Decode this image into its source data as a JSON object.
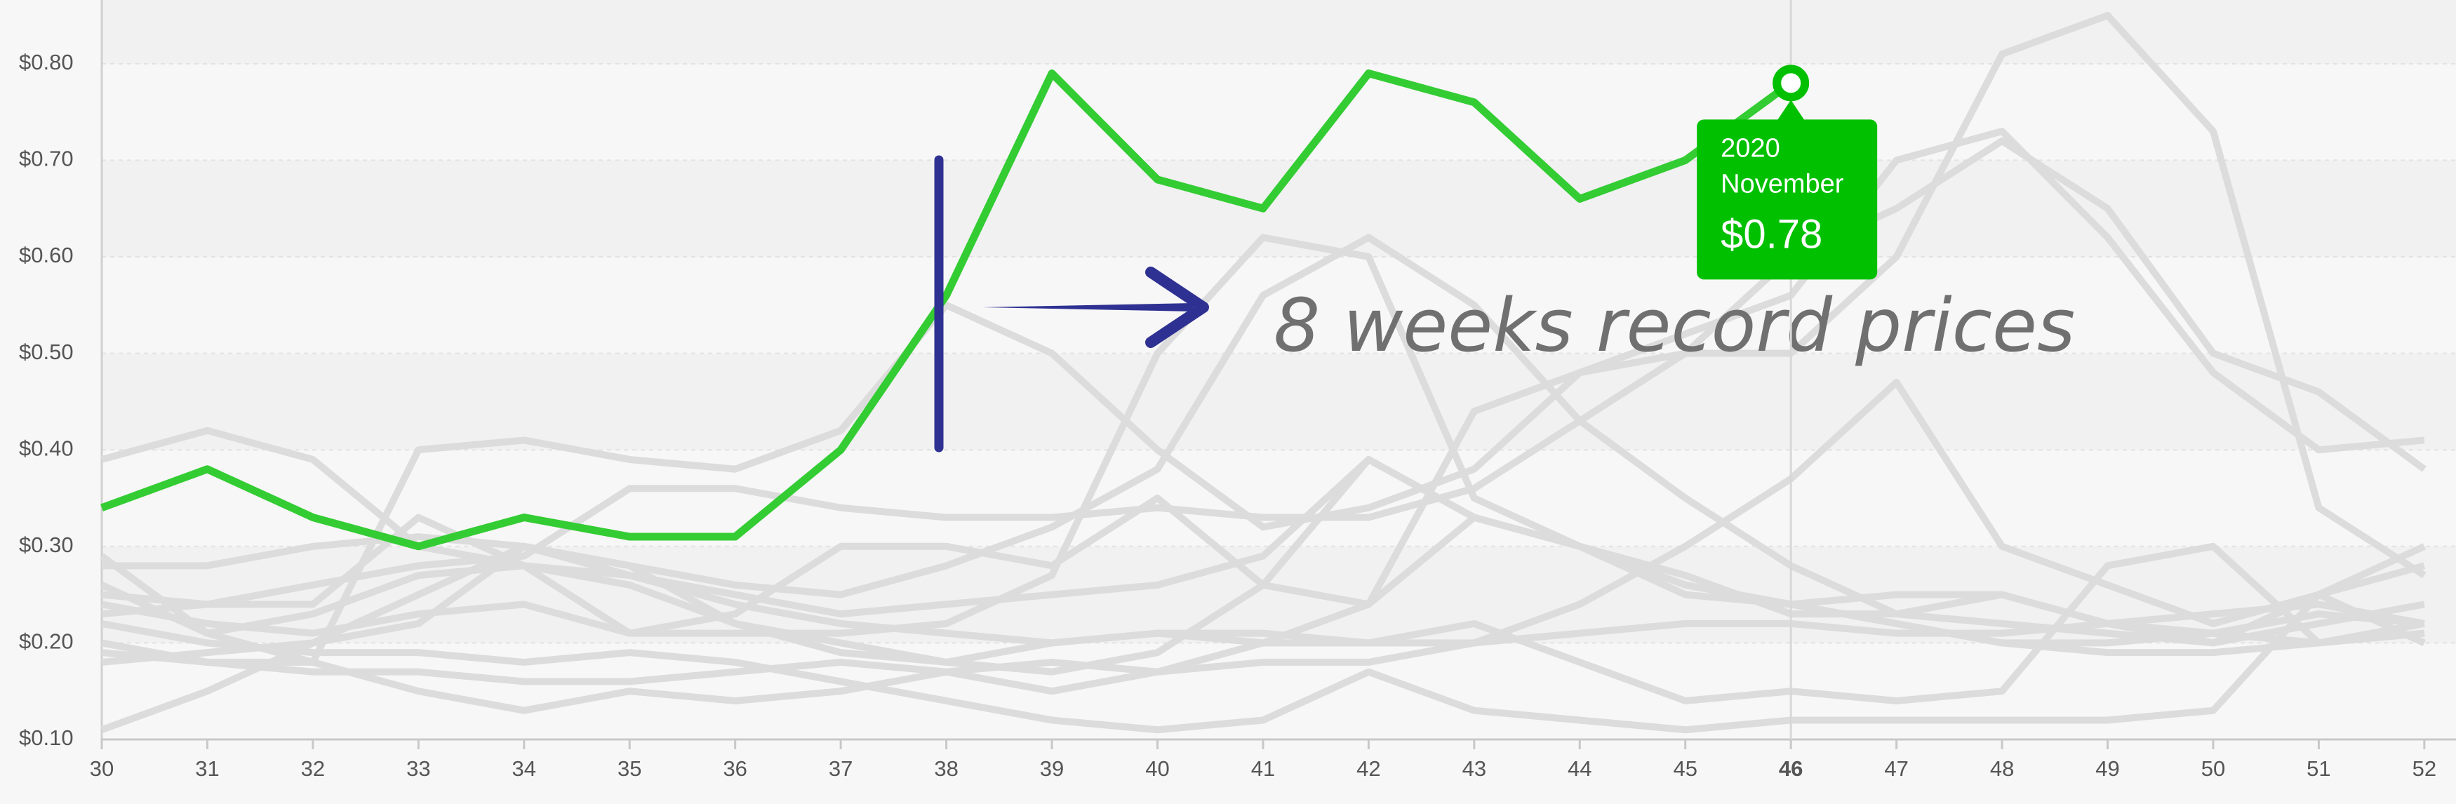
{
  "chart_data": {
    "type": "line",
    "x": [
      30,
      31,
      32,
      33,
      34,
      35,
      36,
      37,
      38,
      39,
      40,
      41,
      42,
      43,
      44,
      45,
      46,
      47,
      48,
      49,
      50,
      51,
      52
    ],
    "xlim": [
      30,
      52.3
    ],
    "ylim": [
      0.1,
      0.866
    ],
    "yticks": [
      {
        "value": 0.1,
        "label": "$0.10"
      },
      {
        "value": 0.2,
        "label": "$0.20"
      },
      {
        "value": 0.3,
        "label": "$0.30"
      },
      {
        "value": 0.4,
        "label": "$0.40"
      },
      {
        "value": 0.5,
        "label": "$0.50"
      },
      {
        "value": 0.6,
        "label": "$0.60"
      },
      {
        "value": 0.7,
        "label": "$0.70"
      },
      {
        "value": 0.8,
        "label": "$0.80"
      }
    ],
    "grid": true,
    "annotation": "8 weeks record prices",
    "tooltip": {
      "x": 46,
      "year": "2020",
      "month": "November",
      "value_label": "$0.78",
      "color": "#00c000"
    },
    "series": [
      {
        "color": "#dcdcdc",
        "values": [
          0.39,
          0.42,
          0.39,
          0.3,
          0.28,
          0.27,
          0.24,
          0.22,
          0.21,
          0.2,
          0.21,
          0.2,
          0.2,
          0.2,
          0.21,
          0.22,
          0.22,
          0.21,
          0.21,
          0.22,
          0.21,
          0.2,
          0.21
        ]
      },
      {
        "color": "#dcdcdc",
        "values": [
          0.11,
          0.15,
          0.2,
          0.25,
          0.3,
          0.27,
          0.25,
          0.23,
          0.24,
          0.25,
          0.26,
          0.29,
          0.39,
          0.33,
          0.3,
          0.26,
          0.24,
          0.22,
          0.2,
          0.2,
          0.21,
          0.23,
          0.22
        ]
      },
      {
        "color": "#dcdcdc",
        "values": [
          0.29,
          0.21,
          0.18,
          0.4,
          0.41,
          0.39,
          0.38,
          0.42,
          0.55,
          0.5,
          0.4,
          0.32,
          0.34,
          0.38,
          0.48,
          0.52,
          0.56,
          0.7,
          0.73,
          0.62,
          0.48,
          0.4,
          0.41
        ]
      },
      {
        "color": "#dcdcdc",
        "values": [
          0.25,
          0.24,
          0.26,
          0.28,
          0.29,
          0.36,
          0.36,
          0.34,
          0.33,
          0.33,
          0.34,
          0.33,
          0.33,
          0.36,
          0.43,
          0.5,
          0.6,
          0.65,
          0.72,
          0.65,
          0.5,
          0.46,
          0.38
        ]
      },
      {
        "color": "#dcdcdc",
        "values": [
          0.2,
          0.18,
          0.17,
          0.17,
          0.16,
          0.16,
          0.17,
          0.18,
          0.17,
          0.15,
          0.17,
          0.2,
          0.24,
          0.44,
          0.48,
          0.5,
          0.5,
          0.6,
          0.81,
          0.85,
          0.73,
          0.34,
          0.27
        ]
      },
      {
        "color": "#dcdcdc",
        "values": [
          0.18,
          0.19,
          0.2,
          0.22,
          0.3,
          0.28,
          0.22,
          0.2,
          0.18,
          0.17,
          0.19,
          0.26,
          0.39,
          0.33,
          0.3,
          0.26,
          0.24,
          0.22,
          0.2,
          0.19,
          0.19,
          0.2,
          0.21
        ]
      },
      {
        "color": "#dcdcdc",
        "values": [
          0.22,
          0.2,
          0.19,
          0.19,
          0.18,
          0.19,
          0.18,
          0.16,
          0.14,
          0.12,
          0.11,
          0.12,
          0.17,
          0.13,
          0.12,
          0.11,
          0.12,
          0.12,
          0.12,
          0.12,
          0.13,
          0.25,
          0.2
        ]
      },
      {
        "color": "#dcdcdc",
        "values": [
          0.28,
          0.28,
          0.3,
          0.31,
          0.3,
          0.28,
          0.26,
          0.25,
          0.28,
          0.32,
          0.38,
          0.56,
          0.62,
          0.55,
          0.43,
          0.35,
          0.28,
          0.23,
          0.22,
          0.21,
          0.2,
          0.22,
          0.24
        ]
      },
      {
        "color": "#dcdcdc",
        "values": [
          0.24,
          0.22,
          0.21,
          0.23,
          0.24,
          0.21,
          0.21,
          0.21,
          0.22,
          0.27,
          0.5,
          0.62,
          0.6,
          0.35,
          0.3,
          0.27,
          0.23,
          0.23,
          0.25,
          0.22,
          0.2,
          0.25,
          0.28
        ]
      },
      {
        "color": "#dcdcdc",
        "values": [
          0.19,
          0.18,
          0.18,
          0.15,
          0.13,
          0.15,
          0.14,
          0.15,
          0.17,
          0.18,
          0.17,
          0.18,
          0.18,
          0.2,
          0.24,
          0.3,
          0.37,
          0.47,
          0.3,
          0.26,
          0.22,
          0.25,
          0.3
        ]
      },
      {
        "color": "#dcdcdc",
        "values": [
          0.26,
          0.21,
          0.23,
          0.27,
          0.28,
          0.26,
          0.22,
          0.19,
          0.18,
          0.2,
          0.21,
          0.21,
          0.2,
          0.22,
          0.18,
          0.14,
          0.15,
          0.14,
          0.15,
          0.28,
          0.3,
          0.2,
          0.22
        ]
      },
      {
        "color": "#dcdcdc",
        "values": [
          0.23,
          0.24,
          0.24,
          0.33,
          0.28,
          0.21,
          0.23,
          0.3,
          0.3,
          0.28,
          0.35,
          0.26,
          0.24,
          0.33,
          0.3,
          0.25,
          0.24,
          0.25,
          0.25,
          0.22,
          0.23,
          0.24,
          0.22
        ]
      },
      {
        "color": "#33cc33",
        "values": [
          0.34,
          0.38,
          0.33,
          0.3,
          0.33,
          0.31,
          0.31,
          0.4,
          0.56,
          0.79,
          0.68,
          0.65,
          0.79,
          0.76,
          0.66,
          0.7,
          0.78,
          null,
          null,
          null,
          null,
          null,
          null
        ]
      }
    ]
  }
}
